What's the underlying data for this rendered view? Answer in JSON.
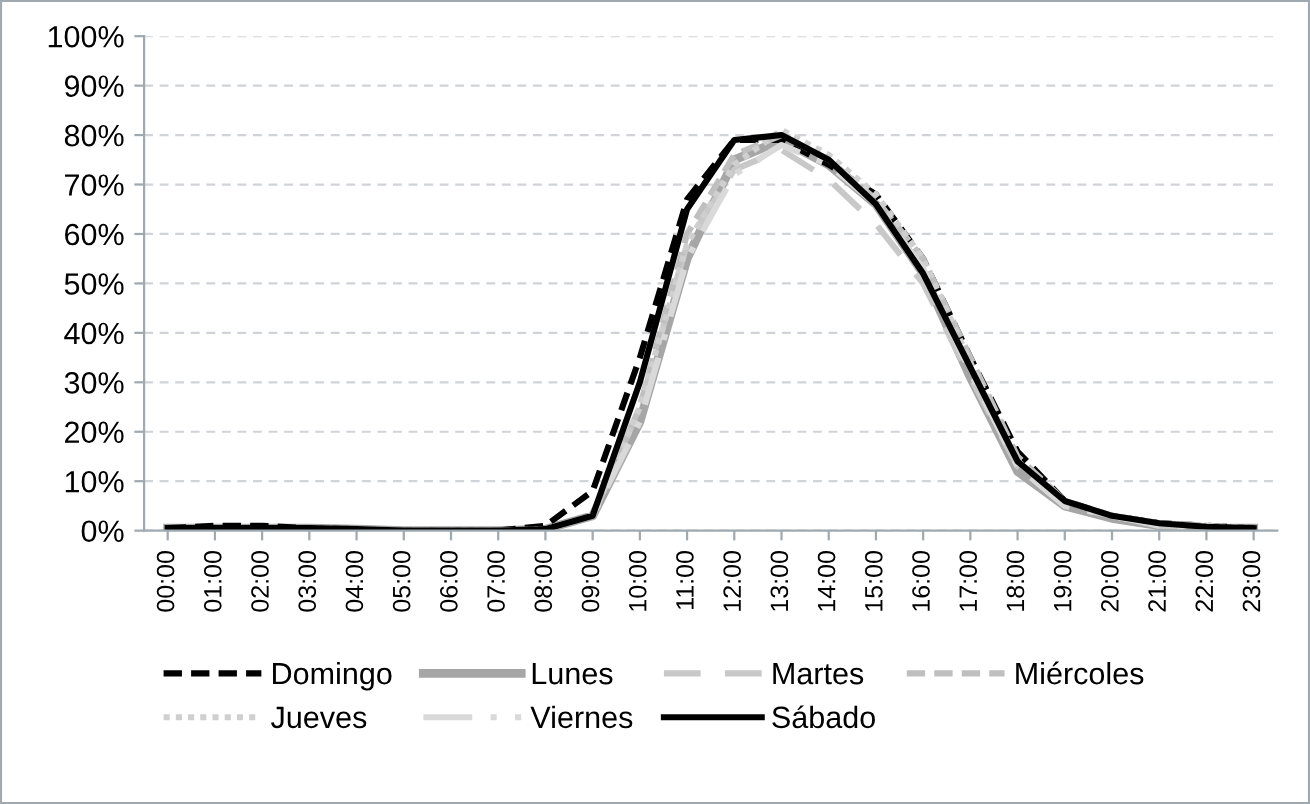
{
  "chart_data": {
    "type": "line",
    "categories": [
      "00:00",
      "01:00",
      "02:00",
      "03:00",
      "04:00",
      "05:00",
      "06:00",
      "07:00",
      "08:00",
      "09:00",
      "10:00",
      "11:00",
      "12:00",
      "13:00",
      "14:00",
      "15:00",
      "16:00",
      "17:00",
      "18:00",
      "19:00",
      "20:00",
      "21:00",
      "22:00",
      "23:00"
    ],
    "ylim": [
      0,
      100
    ],
    "yticks": [
      {
        "value": 0,
        "label": "0%"
      },
      {
        "value": 10,
        "label": "10%"
      },
      {
        "value": 20,
        "label": "20%"
      },
      {
        "value": 30,
        "label": "30%"
      },
      {
        "value": 40,
        "label": "40%"
      },
      {
        "value": 50,
        "label": "50%"
      },
      {
        "value": 60,
        "label": "60%"
      },
      {
        "value": 70,
        "label": "70%"
      },
      {
        "value": 80,
        "label": "80%"
      },
      {
        "value": 90,
        "label": "90%"
      },
      {
        "value": 100,
        "label": "100%"
      }
    ],
    "grid": "y",
    "legend": "bottom",
    "marker": "none",
    "series": [
      {
        "name": "Domingo",
        "color": "#000000",
        "line_style": "dashed",
        "values": [
          0.5,
          1,
          1,
          0.5,
          0.3,
          0,
          0,
          0,
          1,
          8,
          35,
          67,
          79,
          79,
          74,
          68,
          55,
          35,
          16,
          6,
          3,
          1.5,
          1,
          0.5
        ]
      },
      {
        "name": "Lunes",
        "color": "#a6a6a6",
        "line_style": "solid",
        "values": [
          0.5,
          0.5,
          0.5,
          0.5,
          0.3,
          0,
          0,
          0,
          0.3,
          3,
          22,
          55,
          75,
          79,
          74,
          66,
          52,
          31,
          12,
          5,
          2.5,
          1,
          0.5,
          0.5
        ]
      },
      {
        "name": "Martes",
        "color": "#c8c8c8",
        "line_style": "longdash",
        "values": [
          0.5,
          0.5,
          0.5,
          0.5,
          0.3,
          0,
          0,
          0,
          0.3,
          3,
          25,
          58,
          73,
          77,
          71,
          62,
          50,
          31,
          13,
          5,
          3,
          1,
          0.5,
          0.5
        ]
      },
      {
        "name": "Miércoles",
        "color": "#bfbfbf",
        "line_style": "dashed",
        "values": [
          0.5,
          0.5,
          0.5,
          0.5,
          0.3,
          0,
          0,
          0,
          0.3,
          3,
          25,
          60,
          76,
          80,
          75,
          67,
          55,
          35,
          15,
          6,
          3,
          1.5,
          1,
          0.5
        ]
      },
      {
        "name": "Jueves",
        "color": "#cfcfcf",
        "line_style": "dotted",
        "values": [
          0.5,
          0.5,
          0.5,
          0.5,
          0.3,
          0,
          0,
          0,
          0.3,
          3,
          25,
          58,
          74,
          81,
          76,
          68,
          55,
          34,
          14,
          6,
          3,
          1.5,
          1,
          0.5
        ]
      },
      {
        "name": "Viernes",
        "color": "#d9d9d9",
        "line_style": "dashdot",
        "values": [
          0.5,
          0.5,
          0.5,
          0.5,
          0.3,
          0,
          0,
          0,
          0.3,
          3,
          22,
          55,
          72,
          78,
          74,
          66,
          53,
          32,
          13,
          5,
          3,
          1,
          0.5,
          0.5
        ]
      },
      {
        "name": "Sábado",
        "color": "#000000",
        "line_style": "solid",
        "values": [
          0.5,
          0.5,
          0.5,
          0.5,
          0.3,
          0,
          0,
          0,
          0.3,
          3,
          30,
          65,
          79,
          80,
          75,
          66,
          52,
          33,
          14,
          6,
          3,
          1.5,
          0.8,
          0.5
        ]
      }
    ]
  }
}
